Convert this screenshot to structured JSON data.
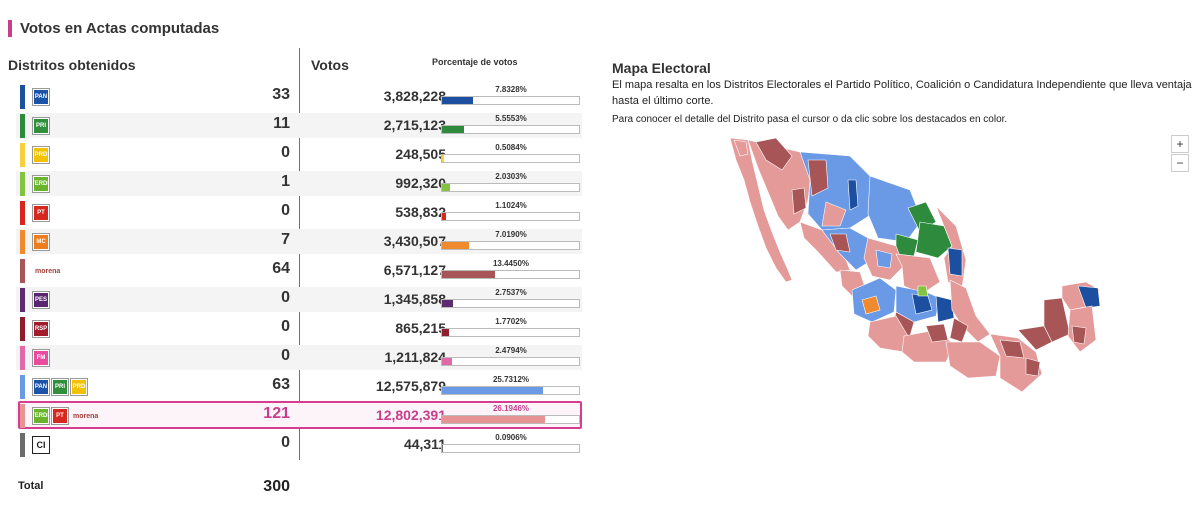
{
  "header": {
    "title": "Votos en Actas computadas",
    "distritos_heading": "Distritos obtenidos",
    "votos_heading": "Votos",
    "porcentaje_heading": "Porcentaje de votos"
  },
  "colors": {
    "accent": "#c73e8c"
  },
  "total": {
    "label": "Total",
    "value": "300"
  },
  "chart_data": {
    "type": "table",
    "columns": [
      "Distritos obtenidos",
      "Votos",
      "Porcentaje de votos"
    ],
    "rows": [
      {
        "logos": [
          {
            "text": "PAN",
            "color": "#1b53a8"
          }
        ],
        "color": "#1d4fa0",
        "districts": "33",
        "votes": "3,828,228",
        "pct_label": "7.8328%",
        "pct": 7.8328
      },
      {
        "logos": [
          {
            "text": "PRI",
            "color": "#2f8f3b"
          }
        ],
        "color": "#2e8b3e",
        "districts": "11",
        "votes": "2,715,123",
        "pct_label": "5.5553%",
        "pct": 5.5553
      },
      {
        "logos": [
          {
            "text": "PRD",
            "color": "#f2c200"
          }
        ],
        "color": "#f5cf3d",
        "districts": "0",
        "votes": "248,505",
        "pct_label": "0.5084%",
        "pct": 0.5084
      },
      {
        "logos": [
          {
            "text": "VERDE",
            "color": "#6ab42d"
          }
        ],
        "color": "#84c341",
        "districts": "1",
        "votes": "992,320",
        "pct_label": "2.0303%",
        "pct": 2.0303
      },
      {
        "logos": [
          {
            "text": "PT",
            "color": "#d7281f"
          }
        ],
        "color": "#d7281f",
        "districts": "0",
        "votes": "538,832",
        "pct_label": "1.1024%",
        "pct": 1.1024
      },
      {
        "logos": [
          {
            "text": "MC",
            "color": "#ee7d1e"
          }
        ],
        "color": "#ef8a2e",
        "districts": "7",
        "votes": "3,430,507",
        "pct_label": "7.0190%",
        "pct": 7.019
      },
      {
        "logos": [
          {
            "text": "morena",
            "color": "#a23e3b"
          }
        ],
        "color": "#a75556",
        "districts": "64",
        "votes": "6,571,127",
        "pct_label": "13.4450%",
        "pct": 13.445
      },
      {
        "logos": [
          {
            "text": "PES",
            "color": "#5a2670"
          }
        ],
        "color": "#5b2d6e",
        "districts": "0",
        "votes": "1,345,858",
        "pct_label": "2.7537%",
        "pct": 2.7537
      },
      {
        "logos": [
          {
            "text": "RSP",
            "color": "#a11d2e"
          }
        ],
        "color": "#8e1e2d",
        "districts": "0",
        "votes": "865,215",
        "pct_label": "1.7702%",
        "pct": 1.7702
      },
      {
        "logos": [
          {
            "text": "FM",
            "color": "#e94c9e"
          }
        ],
        "color": "#e06aa8",
        "districts": "0",
        "votes": "1,211,824",
        "pct_label": "2.4794%",
        "pct": 2.4794
      },
      {
        "logos": [
          {
            "text": "PAN",
            "color": "#1b53a8"
          },
          {
            "text": "PRI",
            "color": "#2f8f3b"
          },
          {
            "text": "PRD",
            "color": "#f2c200"
          }
        ],
        "color": "#6a99e6",
        "districts": "63",
        "votes": "12,575,879",
        "pct_label": "25.7312%",
        "pct": 25.7312
      },
      {
        "logos": [
          {
            "text": "VERDE",
            "color": "#6ab42d"
          },
          {
            "text": "PT",
            "color": "#d7281f"
          },
          {
            "text": "morena",
            "color": "#a23e3b"
          }
        ],
        "color": "#e59393",
        "districts": "121",
        "votes": "12,802,391",
        "pct_label": "26.1946%",
        "pct": 26.1946,
        "highlight": true
      },
      {
        "logos": [
          {
            "text": "CI",
            "color": "#ffffff"
          }
        ],
        "color": "#6b6b6b",
        "districts": "0",
        "votes": "44,311",
        "pct_label": "0.0906%",
        "pct": 0.0906
      }
    ],
    "pct_max": 35
  },
  "map": {
    "title": "Mapa Electoral",
    "description": "El mapa resalta en los Distritos Electorales el Partido Político, Coalición o Candidatura Independiente que lleva ventaja hasta el último corte.",
    "help": "Para conocer el detalle del Distrito pasa el cursor o da clic sobre los destacados en color.",
    "zoom_in": "+",
    "zoom_out": "−"
  }
}
